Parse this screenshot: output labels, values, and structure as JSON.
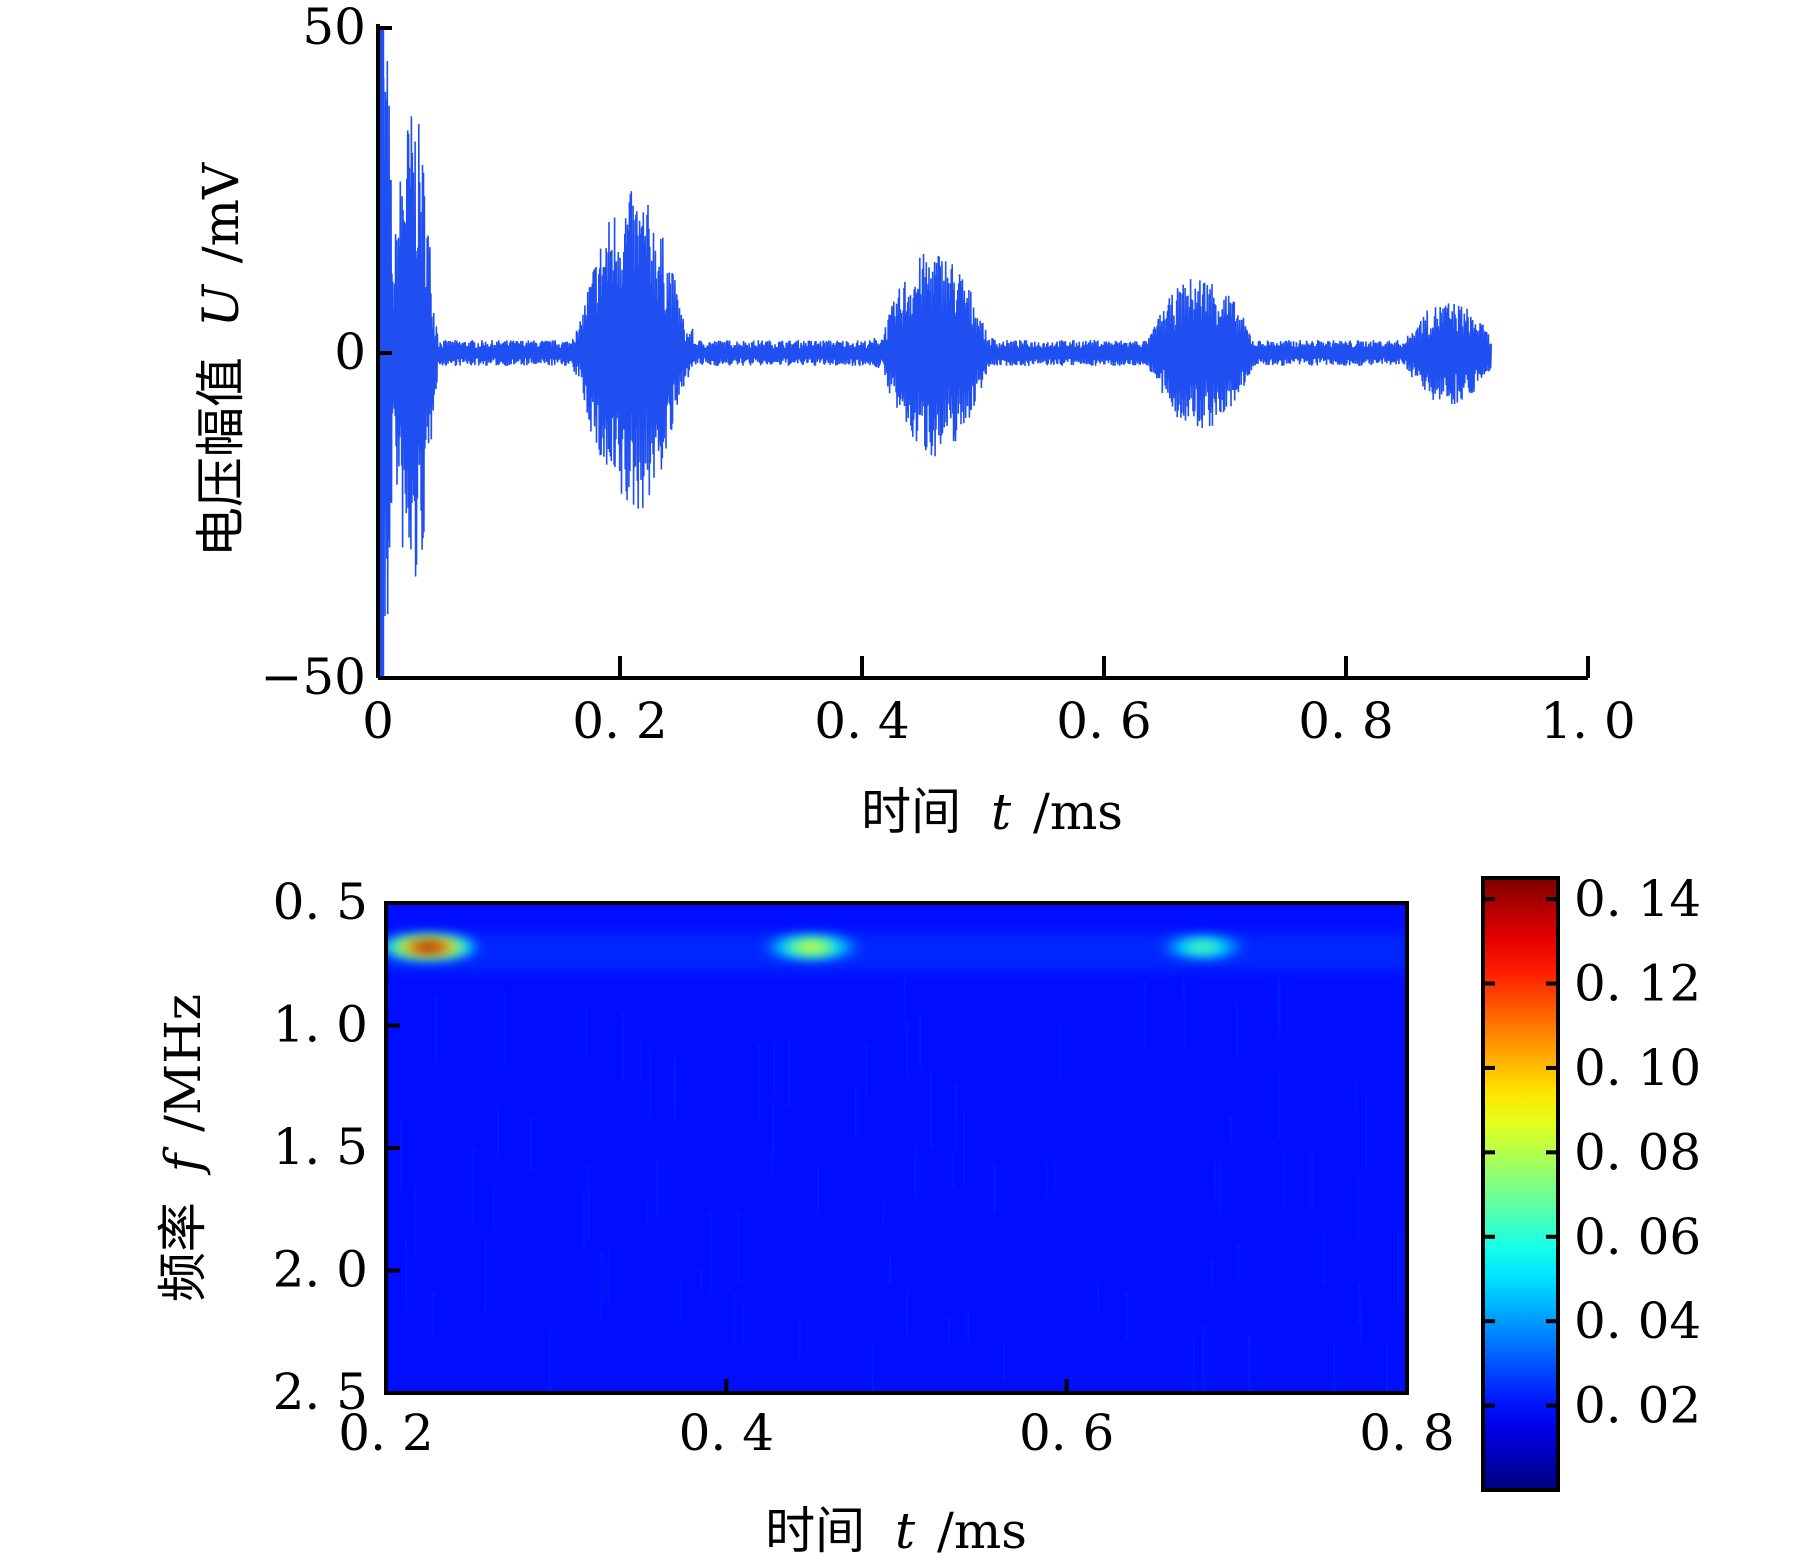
{
  "chart_data": [
    {
      "type": "line",
      "title": "",
      "xlabel_cn": "时间",
      "xlabel_sym": "t",
      "xlabel_unit": "/ms",
      "ylabel_cn": "电压幅值",
      "ylabel_sym": "U",
      "ylabel_unit": "/mV",
      "xlim": [
        0,
        1.0
      ],
      "ylim": [
        -50,
        50
      ],
      "xticks": [
        0,
        0.2,
        0.4,
        0.6,
        0.8,
        1.0
      ],
      "xtick_labels": [
        "0",
        "0. 2",
        "0. 4",
        "0. 6",
        "0. 8",
        "1. 0"
      ],
      "yticks": [
        -50,
        0,
        50
      ],
      "ytick_labels": [
        "−50",
        "0",
        "50"
      ],
      "series_color": "#1f4ff0",
      "signal_end": 0.92,
      "bursts": [
        {
          "t_start": 0.0,
          "t_end": 0.012,
          "peak": 50
        },
        {
          "t_start": 0.012,
          "t_end": 0.045,
          "peak": 38
        },
        {
          "t_start": 0.17,
          "t_end": 0.25,
          "peak": 25
        },
        {
          "t_start": 0.42,
          "t_end": 0.5,
          "peak": 16
        },
        {
          "t_start": 0.64,
          "t_end": 0.72,
          "peak": 12
        },
        {
          "t_start": 0.85,
          "t_end": 0.92,
          "peak": 8
        }
      ],
      "baseline_noise": 2
    },
    {
      "type": "heatmap",
      "title": "",
      "xlabel_cn": "时间",
      "xlabel_sym": "t",
      "xlabel_unit": "/ms",
      "ylabel_cn": "频率",
      "ylabel_sym": "f",
      "ylabel_unit": "/MHz",
      "xlim": [
        0.2,
        0.8
      ],
      "ylim": [
        0.5,
        2.5
      ],
      "y_inverted": true,
      "xticks": [
        0.2,
        0.4,
        0.6,
        0.8
      ],
      "xtick_labels": [
        "0. 2",
        "0. 4",
        "0. 6",
        "0. 8"
      ],
      "yticks": [
        0.5,
        1.0,
        1.5,
        2.0,
        2.5
      ],
      "ytick_labels": [
        "0. 5",
        "1. 0",
        "1. 5",
        "2. 0",
        "2. 5"
      ],
      "colorbar": {
        "range": [
          0,
          0.145
        ],
        "ticks": [
          0.02,
          0.04,
          0.06,
          0.08,
          0.1,
          0.12,
          0.14
        ],
        "tick_labels": [
          "0. 02",
          "0. 04",
          "0. 06",
          "0. 08",
          "0. 10",
          "0. 12",
          "0. 14"
        ],
        "colormap": "jet"
      },
      "background_value": 0.008,
      "hotspots": [
        {
          "t": 0.225,
          "f": 0.68,
          "value": 0.14
        },
        {
          "t": 0.45,
          "f": 0.68,
          "value": 0.09
        },
        {
          "t": 0.68,
          "f": 0.68,
          "value": 0.07
        }
      ]
    }
  ]
}
